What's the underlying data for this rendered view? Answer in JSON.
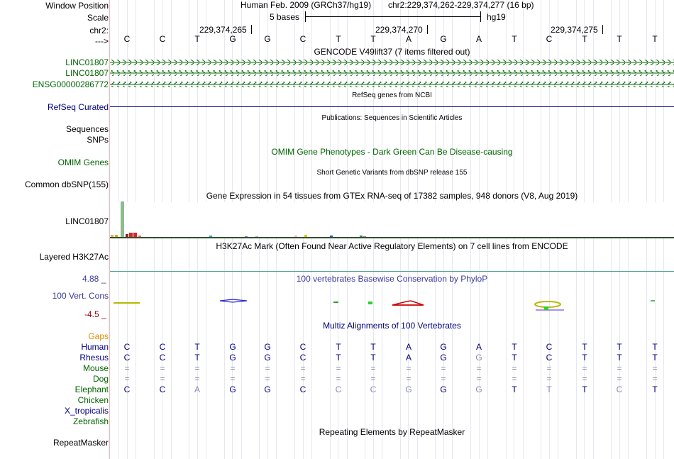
{
  "header": {
    "window_position_label": "Window Position",
    "assembly": "Human Feb. 2009 (GRCh37/hg19)",
    "position": "chr2:229,374,262-229,374,277 (16 bp)",
    "scale_label": "Scale",
    "scale_text": "5 bases",
    "scale_assembly": "hg19",
    "chrom_label": "chr2:",
    "coords": [
      "229,374,265",
      "229,374,270",
      "229,374,275"
    ],
    "strand_label": "--->",
    "bases": [
      "C",
      "C",
      "T",
      "G",
      "G",
      "C",
      "T",
      "T",
      "A",
      "G",
      "A",
      "T",
      "C",
      "T",
      "T",
      "T"
    ]
  },
  "tracks": {
    "gencode": {
      "title": "GENCODE V49lift37 (7 items filtered out)",
      "items": [
        "LINC01807",
        "LINC01807",
        "ENSG00000286772"
      ]
    },
    "refseq": {
      "title": "RefSeq genes from NCBI",
      "label": "RefSeq Curated"
    },
    "publications": {
      "title": "Publications: Sequences in Scientific Articles",
      "labels": [
        "Sequences",
        "SNPs"
      ]
    },
    "omim": {
      "title": "OMIM Gene Phenotypes - Dark Green Can Be Disease-causing",
      "label": "OMIM Genes"
    },
    "dbsnp": {
      "title": "Short Genetic Variants from dbSNP release 155",
      "label": "Common dbSNP(155)"
    },
    "gtex": {
      "title": "Gene Expression in 54 tissues from GTEx RNA-seq of 17382 samples, 948 donors (V8, Aug 2019)",
      "label": "LINC01807"
    },
    "h3k27ac": {
      "title": "H3K27Ac Mark (Often Found Near Active Regulatory Elements) on 7 cell lines from ENCODE",
      "label": "Layered H3K27Ac"
    },
    "phylop": {
      "title": "100 vertebrates Basewise Conservation by PhyloP",
      "label": "100 Vert. Cons",
      "max": "4.88 _",
      "min": "-4.5 _"
    },
    "multiz": {
      "title": "Multiz Alignments of 100 Vertebrates",
      "gaps_label": "Gaps",
      "species": [
        {
          "name": "Human",
          "bases": [
            "C",
            "C",
            "T",
            "G",
            "G",
            "C",
            "T",
            "T",
            "A",
            "G",
            "A",
            "T",
            "C",
            "T",
            "T",
            "T"
          ]
        },
        {
          "name": "Rhesus",
          "bases": [
            "C",
            "C",
            "T",
            "G",
            "G",
            "C",
            "T",
            "T",
            "A",
            "G",
            "G",
            "T",
            "C",
            "T",
            "T",
            "T"
          ]
        },
        {
          "name": "Mouse",
          "bases": [
            "=",
            "=",
            "=",
            "=",
            "=",
            "=",
            "=",
            "=",
            "=",
            "=",
            "=",
            "=",
            "=",
            "=",
            "=",
            "="
          ]
        },
        {
          "name": "Dog",
          "bases": [
            "=",
            "=",
            "=",
            "=",
            "=",
            "=",
            "=",
            "=",
            "=",
            "=",
            "=",
            "=",
            "=",
            "=",
            "=",
            "="
          ]
        },
        {
          "name": "Elephant",
          "bases": [
            "C",
            "C",
            "A",
            "G",
            "G",
            "C",
            "C",
            "C",
            "G",
            "G",
            "G",
            "T",
            "T",
            "T",
            "C",
            "T"
          ]
        },
        {
          "name": "Chicken",
          "bases": []
        },
        {
          "name": "X_tropicalis",
          "bases": []
        },
        {
          "name": "Zebrafish",
          "bases": []
        }
      ]
    },
    "repeatmasker": {
      "title": "Repeating Elements by RepeatMasker",
      "label": "RepeatMasker"
    }
  },
  "colors": {
    "gene_green": "#006400",
    "refseq_navy": "#000080",
    "phylop_blue": "#3a3a9c",
    "gaps_orange": "#e08a00",
    "gtex_green": "#8fbc8f",
    "gtex_red": "#d62728"
  }
}
